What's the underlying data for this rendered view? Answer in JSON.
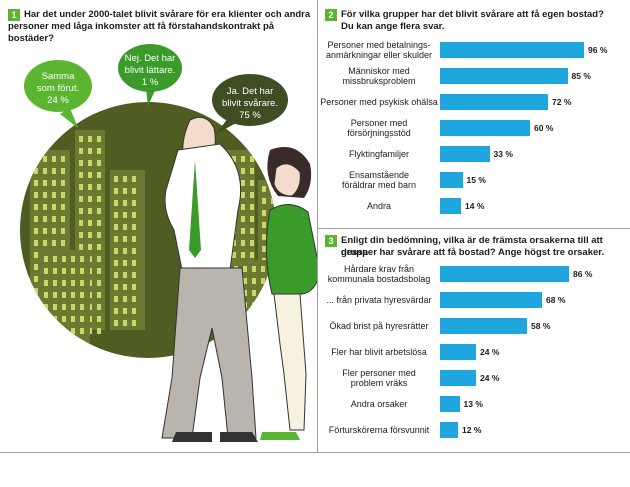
{
  "colors": {
    "green": "#5bb531",
    "dark_green": "#3a4d1e",
    "blue": "#1fa6df"
  },
  "q1": {
    "num": "1",
    "text_line1": "Har det under 2000-talet blivit svårare för era klienter och andra",
    "text_line2": "personer med låga inkomster att få förstahandskontrakt på bostäder?",
    "bubble_a_line1": "Samma",
    "bubble_a_line2": "som förut.",
    "bubble_a_value": "24 %",
    "bubble_b_line1": "Nej. Det har",
    "bubble_b_line2": "blivit lättare.",
    "bubble_b_value": "1 %",
    "bubble_c_line1": "Ja. Det har",
    "bubble_c_line2": "blivit svårare.",
    "bubble_c_value": "75 %"
  },
  "q2": {
    "num": "2",
    "text_line1": "För vilka grupper har det blivit svårare att få egen bostad?",
    "text_line2": "Du kan ange flera svar."
  },
  "q3": {
    "num": "3",
    "text_line1": "Enligt din bedömning, vilka är de främsta orsakerna till att dessa",
    "text_line2": "grupper har svårare att få bostad? Ange högst tre orsaker."
  },
  "chart_data": [
    {
      "type": "pie",
      "categories": [
        "Ja. Det har blivit svårare.",
        "Samma som förut.",
        "Nej. Det har blivit lättare."
      ],
      "values": [
        75,
        24,
        1
      ],
      "value_labels": [
        "75 %",
        "24 %",
        "1 %"
      ]
    },
    {
      "type": "bar",
      "categories": [
        "Personer med betalnings-|anmärkningar eller skulder",
        "Människor med|missbruksproblem",
        "Personer med psykisk ohälsa",
        "Personer med|försörjningsstöd",
        "Flyktingfamiljer",
        "Ensamstående|föräldrar med barn",
        "Andra"
      ],
      "values": [
        96,
        85,
        72,
        60,
        33,
        15,
        14
      ],
      "value_labels": [
        "96 %",
        "85 %",
        "72 %",
        "60 %",
        "33 %",
        "15 %",
        "14 %"
      ]
    },
    {
      "type": "bar",
      "categories": [
        "Hårdare krav från|kommunala bostadsbolag",
        "... från privata hyresvärdar",
        "Ökad brist på hyresrätter",
        "Fler har blivit arbetslösa",
        "Fler personer med|problem vräks",
        "Andra orsaker",
        "Förturskörerna försvunnit"
      ],
      "values": [
        86,
        68,
        58,
        24,
        24,
        13,
        12
      ],
      "value_labels": [
        "86 %",
        "68 %",
        "58 %",
        "24 %",
        "24 %",
        "13 %",
        "12 %"
      ]
    }
  ]
}
